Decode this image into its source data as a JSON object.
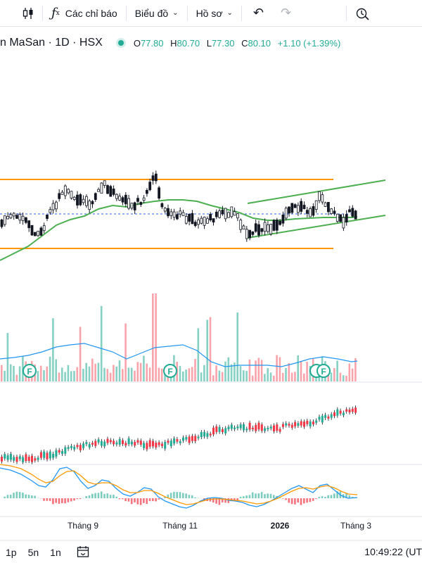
{
  "toolbar": {
    "candle_icon": "candlestick-icon",
    "indicators_label": "Các chỉ báo",
    "chart_label": "Biểu đồ",
    "profile_label": "Hồ sơ",
    "undo_icon": "undo-icon",
    "redo_icon": "redo-icon",
    "lock_icon": "alert-icon"
  },
  "legend": {
    "symbol": "n MaSan · 1D · HSX",
    "open_key": "O",
    "open": "77.80",
    "high_key": "H",
    "high": "80.70",
    "low_key": "L",
    "low": "77.30",
    "close_key": "C",
    "close": "80.10",
    "change": "+1.10 (+1.39%)",
    "status_color": "#22ab94"
  },
  "earnings_markers": [
    "F",
    "F",
    "F"
  ],
  "xaxis": {
    "labels": [
      "Tháng 9",
      "Tháng 11",
      "2026",
      "Tháng 3"
    ]
  },
  "bottom_bar": {
    "intervals": [
      "1p",
      "5n",
      "1n"
    ],
    "calendar_icon": "calendar-range-icon",
    "time": "10:49:22 (UT"
  },
  "colors": {
    "up": "#22ab94",
    "down": "#f23645",
    "channel": "#4caf50",
    "range": "#ff9800",
    "ma": "#4caf50",
    "volume_ma": "#2196f3"
  }
}
